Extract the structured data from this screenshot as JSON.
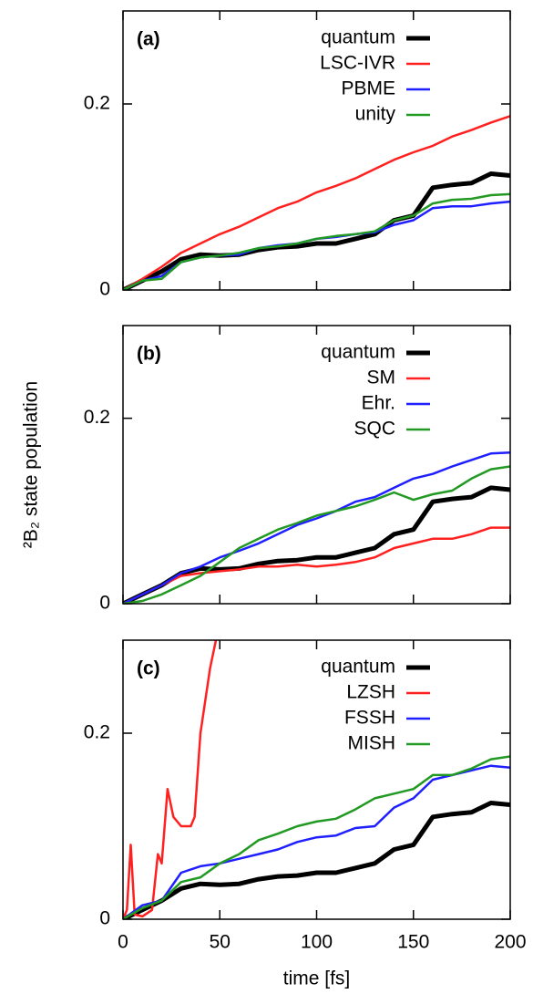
{
  "chart_data": [
    {
      "type": "line",
      "panel_label": "(a)",
      "x": [
        0,
        10,
        20,
        30,
        40,
        50,
        60,
        70,
        80,
        90,
        100,
        110,
        120,
        130,
        140,
        150,
        160,
        170,
        180,
        190,
        200
      ],
      "xlim": [
        0,
        200
      ],
      "ylim": [
        0,
        0.3
      ],
      "yticks": [
        0,
        0.2
      ],
      "legend": "top-right",
      "series": [
        {
          "name": "quantum",
          "color": "#000000",
          "values": [
            0,
            0.01,
            0.02,
            0.033,
            0.038,
            0.037,
            0.038,
            0.043,
            0.046,
            0.047,
            0.05,
            0.05,
            0.055,
            0.06,
            0.075,
            0.08,
            0.11,
            0.113,
            0.115,
            0.125,
            0.123
          ]
        },
        {
          "name": "LSC-IVR",
          "color": "#ff2020",
          "values": [
            0,
            0.012,
            0.025,
            0.04,
            0.05,
            0.06,
            0.068,
            0.078,
            0.088,
            0.095,
            0.105,
            0.112,
            0.12,
            0.13,
            0.14,
            0.148,
            0.155,
            0.165,
            0.172,
            0.18,
            0.187
          ]
        },
        {
          "name": "PBME",
          "color": "#1f1fff",
          "values": [
            0,
            0.01,
            0.015,
            0.03,
            0.035,
            0.037,
            0.038,
            0.045,
            0.048,
            0.05,
            0.055,
            0.057,
            0.06,
            0.062,
            0.07,
            0.075,
            0.088,
            0.09,
            0.09,
            0.093,
            0.095
          ]
        },
        {
          "name": "unity",
          "color": "#229922",
          "values": [
            0,
            0.01,
            0.012,
            0.03,
            0.035,
            0.037,
            0.04,
            0.045,
            0.047,
            0.05,
            0.055,
            0.058,
            0.06,
            0.063,
            0.075,
            0.08,
            0.093,
            0.097,
            0.098,
            0.102,
            0.103
          ]
        }
      ]
    },
    {
      "type": "line",
      "panel_label": "(b)",
      "ylabel": "²B₂ state population",
      "x": [
        0,
        10,
        20,
        30,
        40,
        50,
        60,
        70,
        80,
        90,
        100,
        110,
        120,
        130,
        140,
        150,
        160,
        170,
        180,
        190,
        200
      ],
      "xlim": [
        0,
        200
      ],
      "ylim": [
        0,
        0.3
      ],
      "yticks": [
        0,
        0.2
      ],
      "legend": "top-right",
      "series": [
        {
          "name": "quantum",
          "color": "#000000",
          "values": [
            0,
            0.01,
            0.02,
            0.033,
            0.038,
            0.037,
            0.038,
            0.043,
            0.046,
            0.047,
            0.05,
            0.05,
            0.055,
            0.06,
            0.075,
            0.08,
            0.11,
            0.113,
            0.115,
            0.125,
            0.123
          ]
        },
        {
          "name": "SM",
          "color": "#ff2020",
          "values": [
            0,
            0.01,
            0.02,
            0.03,
            0.033,
            0.035,
            0.037,
            0.04,
            0.04,
            0.042,
            0.04,
            0.042,
            0.045,
            0.05,
            0.06,
            0.065,
            0.07,
            0.07,
            0.075,
            0.082,
            0.082
          ]
        },
        {
          "name": "Ehr.",
          "color": "#1f1fff",
          "values": [
            0,
            0.01,
            0.02,
            0.033,
            0.04,
            0.05,
            0.057,
            0.065,
            0.075,
            0.085,
            0.092,
            0.1,
            0.11,
            0.115,
            0.125,
            0.135,
            0.14,
            0.148,
            0.155,
            0.162,
            0.163
          ]
        },
        {
          "name": "SQC",
          "color": "#229922",
          "values": [
            0,
            0.003,
            0.01,
            0.02,
            0.03,
            0.045,
            0.06,
            0.07,
            0.08,
            0.087,
            0.095,
            0.1,
            0.105,
            0.112,
            0.12,
            0.112,
            0.118,
            0.122,
            0.135,
            0.145,
            0.148
          ]
        }
      ]
    },
    {
      "type": "line",
      "panel_label": "(c)",
      "xlabel": "time [fs]",
      "x": [
        0,
        10,
        20,
        30,
        40,
        50,
        60,
        70,
        80,
        90,
        100,
        110,
        120,
        130,
        140,
        150,
        160,
        170,
        180,
        190,
        200
      ],
      "xlim": [
        0,
        200
      ],
      "xticks": [
        0,
        50,
        100,
        150,
        200
      ],
      "ylim": [
        0,
        0.3
      ],
      "yticks": [
        0,
        0.2
      ],
      "legend": "top-right",
      "series": [
        {
          "name": "quantum",
          "color": "#000000",
          "values": [
            0,
            0.01,
            0.02,
            0.033,
            0.038,
            0.037,
            0.038,
            0.043,
            0.046,
            0.047,
            0.05,
            0.05,
            0.055,
            0.06,
            0.075,
            0.08,
            0.11,
            0.113,
            0.115,
            0.125,
            0.123
          ]
        },
        {
          "name": "LZSH",
          "color": "#ff2020",
          "x": [
            0,
            2,
            4,
            6,
            10,
            15,
            18,
            20,
            23,
            26,
            30,
            35,
            37,
            40,
            45,
            48
          ],
          "values": [
            0,
            0.01,
            0.08,
            0.005,
            0.003,
            0.01,
            0.07,
            0.06,
            0.14,
            0.11,
            0.1,
            0.1,
            0.11,
            0.2,
            0.27,
            0.3
          ]
        },
        {
          "name": "FSSH",
          "color": "#1f1fff",
          "values": [
            0,
            0.015,
            0.02,
            0.05,
            0.057,
            0.06,
            0.065,
            0.07,
            0.075,
            0.083,
            0.088,
            0.09,
            0.098,
            0.1,
            0.12,
            0.13,
            0.15,
            0.155,
            0.16,
            0.165,
            0.163
          ]
        },
        {
          "name": "MISH",
          "color": "#229922",
          "values": [
            0,
            0.012,
            0.02,
            0.04,
            0.045,
            0.06,
            0.07,
            0.085,
            0.092,
            0.1,
            0.105,
            0.108,
            0.118,
            0.13,
            0.135,
            0.14,
            0.155,
            0.155,
            0.162,
            0.172,
            0.175
          ]
        }
      ]
    }
  ]
}
